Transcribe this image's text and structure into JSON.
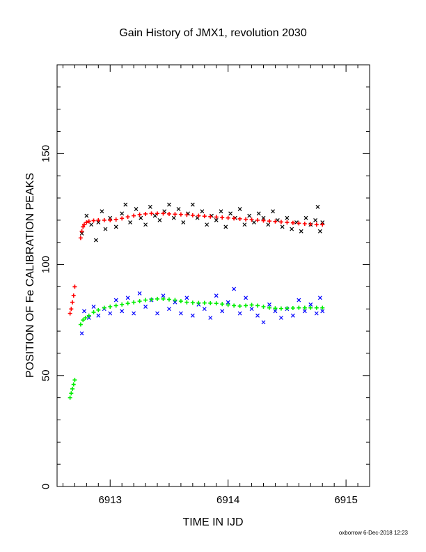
{
  "chart_data": {
    "type": "scatter",
    "title": "Gain History of JMX1, revolution 2030",
    "xlabel": "TIME IN IJD",
    "ylabel": "POSITION OF Fe CALIBRATION PEAKS",
    "xlim": [
      6912.55,
      6915.2
    ],
    "ylim": [
      0,
      190
    ],
    "xticks": [
      6913,
      6914,
      6915
    ],
    "xtick_labels": [
      "6913",
      "6914",
      "6915"
    ],
    "yticks": [
      0,
      50,
      100,
      150
    ],
    "ytick_labels": [
      "0",
      "50",
      "100",
      "150"
    ],
    "grid": false,
    "footer": "oxborrow  6-Dec-2018 12:23",
    "series": [
      {
        "marker": "x",
        "color": "#000000",
        "x": [
          6912.76,
          6912.8,
          6912.84,
          6912.88,
          6912.9,
          6912.93,
          6912.96,
          6913.0,
          6913.05,
          6913.1,
          6913.13,
          6913.17,
          6913.22,
          6913.26,
          6913.3,
          6913.34,
          6913.38,
          6913.42,
          6913.46,
          6913.5,
          6913.54,
          6913.58,
          6913.62,
          6913.66,
          6913.7,
          6913.74,
          6913.78,
          6913.82,
          6913.86,
          6913.9,
          6913.94,
          6913.98,
          6914.02,
          6914.06,
          6914.1,
          6914.14,
          6914.18,
          6914.22,
          6914.26,
          6914.3,
          6914.34,
          6914.38,
          6914.42,
          6914.46,
          6914.5,
          6914.54,
          6914.58,
          6914.62,
          6914.66,
          6914.7,
          6914.74,
          6914.76,
          6914.78,
          6914.8
        ],
        "y": [
          114,
          122,
          118,
          111,
          119,
          124,
          116,
          121,
          117,
          123,
          127,
          119,
          125,
          121,
          118,
          126,
          122,
          120,
          124,
          127,
          121,
          125,
          119,
          123,
          127,
          121,
          124,
          118,
          122,
          120,
          124,
          117,
          123,
          121,
          125,
          118,
          122,
          119,
          123,
          121,
          118,
          124,
          120,
          117,
          121,
          116,
          119,
          115,
          121,
          118,
          120,
          126,
          115,
          119
        ]
      },
      {
        "marker": "plus",
        "color": "#ff0000",
        "x": [
          6912.66,
          6912.67,
          6912.68,
          6912.69,
          6912.7,
          6912.75,
          6912.76,
          6912.77,
          6912.78,
          6912.8,
          6912.82,
          6912.86,
          6912.9,
          6912.95,
          6913.0,
          6913.05,
          6913.1,
          6913.15,
          6913.2,
          6913.25,
          6913.3,
          6913.35,
          6913.4,
          6913.45,
          6913.5,
          6913.55,
          6913.6,
          6913.65,
          6913.7,
          6913.75,
          6913.8,
          6913.85,
          6913.9,
          6913.95,
          6914.0,
          6914.05,
          6914.1,
          6914.15,
          6914.2,
          6914.25,
          6914.3,
          6914.35,
          6914.4,
          6914.45,
          6914.5,
          6914.55,
          6914.6,
          6914.65,
          6914.7,
          6914.75,
          6914.8
        ],
        "y": [
          78,
          80,
          83,
          86,
          90,
          112,
          115,
          117,
          118,
          119,
          119.5,
          119.8,
          120,
          120,
          120,
          120.3,
          120.8,
          121.5,
          122,
          122.5,
          122.8,
          123,
          123,
          123,
          122.8,
          122.7,
          122.6,
          122.4,
          122.2,
          122,
          121.8,
          121.6,
          121.4,
          121.2,
          121,
          120.8,
          120.6,
          120.4,
          120.2,
          120,
          119.8,
          119.6,
          119.4,
          119.2,
          119,
          118.8,
          118.6,
          118.4,
          118.2,
          118,
          118
        ]
      },
      {
        "marker": "x",
        "color": "#0000ff",
        "x": [
          6912.76,
          6912.78,
          6912.82,
          6912.86,
          6912.9,
          6912.95,
          6913.0,
          6913.05,
          6913.1,
          6913.15,
          6913.2,
          6913.25,
          6913.3,
          6913.35,
          6913.4,
          6913.45,
          6913.5,
          6913.55,
          6913.6,
          6913.65,
          6913.7,
          6913.75,
          6913.8,
          6913.85,
          6913.9,
          6913.95,
          6914.0,
          6914.05,
          6914.1,
          6914.15,
          6914.2,
          6914.25,
          6914.3,
          6914.35,
          6914.4,
          6914.45,
          6914.5,
          6914.55,
          6914.6,
          6914.65,
          6914.7,
          6914.75,
          6914.78,
          6914.8
        ],
        "y": [
          69,
          79,
          76,
          81,
          77,
          80,
          78,
          84,
          79,
          85,
          78,
          87,
          81,
          84,
          78,
          86,
          80,
          83,
          78,
          85,
          77,
          82,
          80,
          76,
          86,
          79,
          83,
          89,
          78,
          85,
          80,
          77,
          74,
          82,
          79,
          76,
          80,
          77,
          84,
          79,
          82,
          78,
          85,
          79
        ]
      },
      {
        "marker": "plus",
        "color": "#00ee00",
        "x": [
          6912.66,
          6912.67,
          6912.68,
          6912.69,
          6912.7,
          6912.75,
          6912.77,
          6912.79,
          6912.82,
          6912.86,
          6912.9,
          6912.95,
          6913.0,
          6913.05,
          6913.1,
          6913.15,
          6913.2,
          6913.25,
          6913.3,
          6913.35,
          6913.4,
          6913.45,
          6913.5,
          6913.55,
          6913.6,
          6913.65,
          6913.7,
          6913.75,
          6913.8,
          6913.85,
          6913.9,
          6913.95,
          6914.0,
          6914.05,
          6914.1,
          6914.15,
          6914.2,
          6914.25,
          6914.3,
          6914.35,
          6914.4,
          6914.45,
          6914.5,
          6914.55,
          6914.6,
          6914.65,
          6914.7,
          6914.75,
          6914.8
        ],
        "y": [
          40,
          42,
          44,
          46,
          48,
          73,
          75,
          76,
          77,
          78.5,
          79.5,
          80.5,
          81,
          81.5,
          82,
          82.5,
          83,
          83.5,
          84,
          84.3,
          84.5,
          84.5,
          84.3,
          84,
          83.5,
          83,
          82.8,
          82.7,
          82.7,
          82.6,
          82.5,
          82.2,
          81.8,
          81.5,
          81.3,
          81.5,
          81.8,
          81.5,
          81,
          80.5,
          80.3,
          80.2,
          80.3,
          80.4,
          80.5,
          80.5,
          80.5,
          80.5,
          80.5
        ]
      }
    ]
  }
}
